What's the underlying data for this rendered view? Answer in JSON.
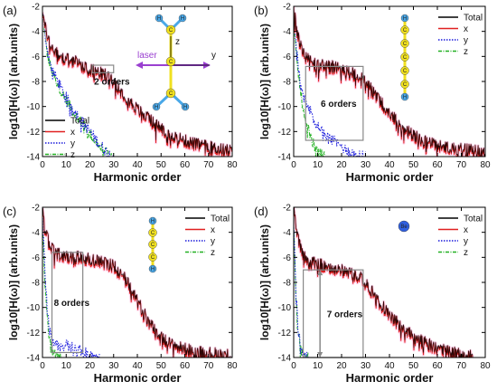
{
  "colors": {
    "total": "#000000",
    "x": "#e02020",
    "y": "#1a1adc",
    "z": "#22b022",
    "x_glow": "#ffb0d8",
    "molecule_carbon": "#f0e020",
    "molecule_hydrogen": "#4aa8e8",
    "laser_arrow": "#9a40d0"
  },
  "chart_data": [
    {
      "panel": "(a)",
      "type": "line",
      "xlabel": "Harmonic order",
      "ylabel": "log10[H(ω)] (arb.units)",
      "xlim": [
        0,
        80
      ],
      "ylim": [
        -14,
        -2
      ],
      "xticks": [
        "0",
        "10",
        "20",
        "30",
        "40",
        "50",
        "60",
        "70",
        "80"
      ],
      "yticks": [
        "-2",
        "-4",
        "-6",
        "-8",
        "-10",
        "-12",
        "-14"
      ],
      "legend": [
        "Total",
        "x",
        "y",
        "z"
      ],
      "legend_position": "bottom-left",
      "molecule": {
        "atoms": [
          "H",
          "H",
          "C",
          "C",
          "C",
          "H",
          "H"
        ],
        "axis_labels": [
          "z",
          "y"
        ],
        "laser_label": "laser"
      },
      "series": [
        {
          "name": "Total",
          "x": [
            0,
            1,
            3,
            5,
            8,
            12,
            16,
            20,
            24,
            28,
            30,
            33,
            36,
            40,
            45,
            50,
            55,
            60,
            65,
            70,
            75,
            80
          ],
          "y": [
            -2.1,
            -3.6,
            -4.8,
            -5.6,
            -6.0,
            -6.2,
            -6.6,
            -7.0,
            -7.3,
            -7.5,
            -7.9,
            -8.7,
            -9.4,
            -10.2,
            -11.0,
            -11.7,
            -12.3,
            -12.7,
            -13.0,
            -13.2,
            -13.4,
            -13.5
          ]
        },
        {
          "name": "x",
          "x": [
            0,
            1,
            3,
            5,
            8,
            12,
            16,
            20,
            24,
            28,
            30,
            33,
            36,
            40,
            45,
            50,
            55,
            60,
            65,
            70,
            75,
            80
          ],
          "y": [
            -2.2,
            -3.7,
            -4.9,
            -5.7,
            -6.1,
            -6.3,
            -6.7,
            -7.1,
            -7.4,
            -7.6,
            -8.0,
            -8.8,
            -9.5,
            -10.3,
            -11.1,
            -11.8,
            -12.4,
            -12.8,
            -13.1,
            -13.3,
            -13.5,
            -13.6
          ]
        },
        {
          "name": "y",
          "x": [
            0,
            1,
            2,
            4,
            6,
            8,
            10,
            12,
            14,
            16,
            18,
            20,
            22,
            24,
            26,
            28,
            30
          ],
          "y": [
            -2.5,
            -4.0,
            -5.5,
            -7.0,
            -7.8,
            -8.6,
            -9.3,
            -9.9,
            -10.5,
            -11.0,
            -11.5,
            -12.0,
            -12.5,
            -13.0,
            -13.4,
            -13.8,
            -14.0
          ]
        },
        {
          "name": "z",
          "x": [
            0,
            1,
            2,
            4,
            6,
            8,
            10,
            12,
            14,
            16,
            18,
            20,
            22,
            24,
            26,
            28,
            30
          ],
          "y": [
            -2.6,
            -4.2,
            -5.8,
            -7.3,
            -8.0,
            -8.8,
            -9.5,
            -10.1,
            -10.7,
            -11.2,
            -11.7,
            -12.2,
            -12.7,
            -13.2,
            -13.6,
            -13.9,
            -14.0
          ]
        }
      ],
      "annotation": {
        "text": "2 orders",
        "x_range": [
          21,
          30
        ],
        "y_range": [
          -6.7,
          -7.3
        ]
      }
    },
    {
      "panel": "(b)",
      "type": "line",
      "xlabel": "Harmonic order",
      "ylabel": "log10[H(ω)] (arb.units)",
      "xlim": [
        0,
        80
      ],
      "ylim": [
        -14,
        -2
      ],
      "xticks": [
        "0",
        "10",
        "20",
        "30",
        "40",
        "50",
        "60",
        "70",
        "80"
      ],
      "yticks": [
        "-2",
        "-4",
        "-6",
        "-8",
        "-10",
        "-12",
        "-14"
      ],
      "legend": [
        "Total",
        "x",
        "y",
        "z"
      ],
      "legend_position": "top-right",
      "molecule": {
        "atoms": [
          "H",
          "C",
          "C",
          "C",
          "C",
          "C",
          "H"
        ]
      },
      "series": [
        {
          "name": "Total",
          "x": [
            0,
            1,
            3,
            5,
            8,
            12,
            16,
            20,
            24,
            28,
            30,
            33,
            36,
            40,
            45,
            50,
            55,
            60,
            65,
            70,
            75,
            80
          ],
          "y": [
            -2.0,
            -3.6,
            -5.0,
            -6.0,
            -6.6,
            -6.7,
            -6.8,
            -7.0,
            -7.3,
            -7.6,
            -8.0,
            -8.8,
            -9.5,
            -10.5,
            -11.5,
            -12.3,
            -12.8,
            -13.1,
            -13.3,
            -13.4,
            -13.5,
            -13.6
          ]
        },
        {
          "name": "x",
          "x": [
            0,
            1,
            3,
            5,
            8,
            12,
            16,
            20,
            24,
            28,
            30,
            33,
            36,
            40,
            45,
            50,
            55,
            60,
            65,
            70,
            75,
            80
          ],
          "y": [
            -2.1,
            -3.7,
            -5.1,
            -6.1,
            -6.7,
            -6.8,
            -6.9,
            -7.1,
            -7.4,
            -7.7,
            -8.1,
            -8.9,
            -9.6,
            -10.6,
            -11.6,
            -12.4,
            -12.9,
            -13.2,
            -13.4,
            -13.5,
            -13.6,
            -13.7
          ]
        },
        {
          "name": "y",
          "x": [
            0,
            1,
            2,
            4,
            6,
            8,
            10,
            12,
            14,
            16,
            18,
            20,
            22,
            24,
            26,
            28,
            30
          ],
          "y": [
            -2.5,
            -5.0,
            -7.0,
            -9.0,
            -10.0,
            -10.8,
            -11.5,
            -12.0,
            -12.4,
            -12.7,
            -12.9,
            -13.2,
            -13.5,
            -13.7,
            -13.9,
            -14.0,
            -14.0
          ]
        },
        {
          "name": "z",
          "x": [
            0,
            1,
            2,
            3,
            4,
            5,
            6,
            7,
            8,
            9,
            10,
            11,
            12,
            13
          ],
          "y": [
            -2.8,
            -5.5,
            -7.5,
            -9.0,
            -10.2,
            -11.0,
            -11.8,
            -12.4,
            -12.9,
            -13.3,
            -13.6,
            -13.8,
            -13.9,
            -14.0
          ]
        }
      ],
      "annotation": {
        "text": "6 orders",
        "x_range": [
          5,
          29
        ],
        "y_range": [
          -6.8,
          -12.7
        ]
      }
    },
    {
      "panel": "(c)",
      "type": "line",
      "xlabel": "Harmonic order",
      "ylabel": "log10[H(ω)] (arb.units)",
      "xlim": [
        0,
        80
      ],
      "ylim": [
        -14,
        -2
      ],
      "xticks": [
        "0",
        "10",
        "20",
        "30",
        "40",
        "50",
        "60",
        "70",
        "80"
      ],
      "yticks": [
        "-2",
        "-4",
        "-6",
        "-8",
        "-10",
        "-12",
        "-14"
      ],
      "legend": [
        "Total",
        "x",
        "y",
        "z"
      ],
      "legend_position": "top-right",
      "molecule": {
        "atoms": [
          "H",
          "C",
          "C",
          "C",
          "H"
        ]
      },
      "series": [
        {
          "name": "Total",
          "x": [
            0,
            1,
            3,
            5,
            8,
            12,
            16,
            20,
            24,
            28,
            30,
            33,
            36,
            40,
            45,
            50,
            55,
            60,
            65,
            70,
            75,
            80
          ],
          "y": [
            -2.0,
            -3.8,
            -5.0,
            -5.6,
            -5.8,
            -5.9,
            -6.0,
            -6.1,
            -6.3,
            -6.5,
            -6.7,
            -7.2,
            -8.0,
            -9.5,
            -11.2,
            -12.4,
            -13.0,
            -13.3,
            -13.5,
            -13.6,
            -13.7,
            -13.8
          ]
        },
        {
          "name": "x",
          "x": [
            0,
            1,
            3,
            5,
            8,
            12,
            16,
            20,
            24,
            28,
            30,
            33,
            36,
            40,
            45,
            50,
            55,
            60,
            65,
            70,
            75,
            80
          ],
          "y": [
            -2.1,
            -3.9,
            -5.1,
            -5.7,
            -5.9,
            -6.0,
            -6.1,
            -6.2,
            -6.4,
            -6.6,
            -6.8,
            -7.3,
            -8.1,
            -9.6,
            -11.3,
            -12.5,
            -13.1,
            -13.4,
            -13.6,
            -13.7,
            -13.8,
            -13.9
          ]
        },
        {
          "name": "y",
          "x": [
            0,
            1,
            2,
            3,
            4,
            6,
            8,
            10,
            12,
            14,
            16,
            18,
            20,
            22,
            24
          ],
          "y": [
            -2.5,
            -7.0,
            -10.0,
            -11.8,
            -12.6,
            -13.0,
            -13.1,
            -13.0,
            -13.2,
            -13.3,
            -13.4,
            -13.6,
            -13.8,
            -13.9,
            -14.0
          ]
        },
        {
          "name": "z",
          "x": [
            0,
            1,
            2,
            3,
            4,
            5,
            6,
            7,
            8
          ],
          "y": [
            -2.8,
            -8.0,
            -11.0,
            -12.6,
            -13.3,
            -13.7,
            -13.9,
            -14.0,
            -14.0
          ]
        }
      ],
      "annotation": {
        "text": "8 orders",
        "x_range": [
          4,
          17
        ],
        "y_range": [
          -5.6,
          -13.6
        ]
      }
    },
    {
      "panel": "(d)",
      "type": "line",
      "xlabel": "Harmonic order",
      "ylabel": "log10[H(ω)] (arb.units)",
      "xlim": [
        0,
        80
      ],
      "ylim": [
        -14,
        -2
      ],
      "xticks": [
        "0",
        "10",
        "20",
        "30",
        "40",
        "50",
        "60",
        "70",
        "80"
      ],
      "yticks": [
        "-2",
        "-4",
        "-6",
        "-8",
        "-10",
        "-12",
        "-14"
      ],
      "legend": [
        "Total",
        "x",
        "y",
        "z"
      ],
      "legend_position": "top-right",
      "molecule": {
        "atoms": [
          "Be"
        ]
      },
      "series": [
        {
          "name": "Total",
          "x": [
            0,
            1,
            3,
            5,
            8,
            12,
            16,
            20,
            24,
            28,
            30,
            33,
            36,
            40,
            45,
            50,
            55,
            60,
            65,
            70,
            75
          ],
          "y": [
            -2.0,
            -3.8,
            -5.4,
            -6.1,
            -6.4,
            -6.6,
            -6.8,
            -7.0,
            -7.3,
            -7.6,
            -8.0,
            -8.8,
            -9.6,
            -10.6,
            -11.5,
            -12.3,
            -12.8,
            -13.2,
            -13.5,
            -13.7,
            -13.9
          ]
        },
        {
          "name": "x",
          "x": [
            0,
            1,
            3,
            5,
            8,
            12,
            16,
            20,
            24,
            28,
            30,
            33,
            36,
            40,
            45,
            50,
            55,
            60,
            65,
            70,
            75
          ],
          "y": [
            -2.1,
            -3.9,
            -5.5,
            -6.2,
            -6.5,
            -6.7,
            -6.9,
            -7.1,
            -7.4,
            -7.7,
            -8.1,
            -8.9,
            -9.7,
            -10.7,
            -11.6,
            -12.4,
            -12.9,
            -13.3,
            -13.6,
            -13.8,
            -14.0
          ]
        },
        {
          "name": "y",
          "x": [
            0,
            1,
            2,
            3,
            4,
            5,
            6,
            7
          ],
          "y": [
            -3.0,
            -9.0,
            -12.0,
            -13.2,
            -13.7,
            -13.9,
            -14.0,
            -14.0
          ]
        },
        {
          "name": "z",
          "x": [
            0,
            1,
            2,
            3,
            4,
            5,
            6
          ],
          "y": [
            -3.2,
            -9.5,
            -12.4,
            -13.4,
            -13.8,
            -14.0,
            -14.0
          ]
        }
      ],
      "annotation": {
        "text": "7 orders",
        "x_range": [
          4,
          29
        ],
        "y_range": [
          -7.0,
          -14.0
        ]
      }
    }
  ]
}
